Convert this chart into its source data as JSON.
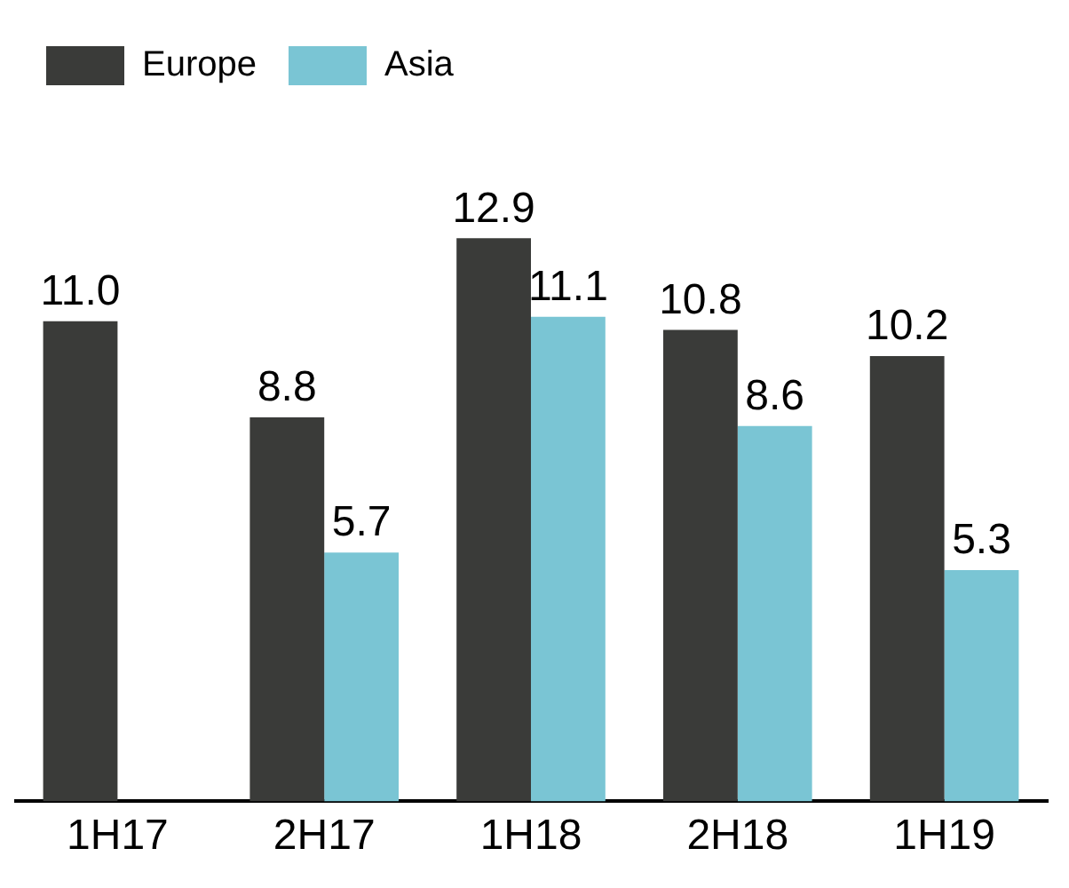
{
  "chart_data": {
    "type": "bar",
    "categories": [
      "1H17",
      "2H17",
      "1H18",
      "2H18",
      "1H19"
    ],
    "series": [
      {
        "name": "Europe",
        "color": "#3a3b39",
        "values": [
          11.0,
          8.8,
          12.9,
          10.8,
          10.2
        ],
        "value_labels": [
          "11.0",
          "8.8",
          "12.9",
          "10.8",
          "10.2"
        ]
      },
      {
        "name": "Asia",
        "color": "#7ac5d4",
        "values": [
          null,
          5.7,
          11.1,
          8.6,
          5.3
        ],
        "value_labels": [
          null,
          "5.7",
          "11.1",
          "8.6",
          "5.3"
        ]
      }
    ],
    "legend": "top left",
    "grid": false,
    "tick_labels": "x"
  }
}
